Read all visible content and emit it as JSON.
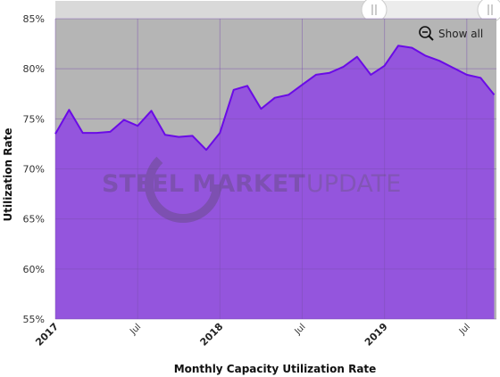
{
  "chart_data": {
    "type": "area",
    "xlabel": "Monthly Capacity Utilization Rate",
    "ylabel": "Utilization Rate",
    "ylim": [
      55,
      85
    ],
    "y_ticks": [
      "55%",
      "60%",
      "65%",
      "70%",
      "75%",
      "80%",
      "85%"
    ],
    "y_tick_values": [
      55,
      60,
      65,
      70,
      75,
      80,
      85
    ],
    "x_ticks": [
      {
        "label": "2017",
        "month": 0,
        "major": true
      },
      {
        "label": "Jul",
        "month": 6,
        "major": false
      },
      {
        "label": "2018",
        "month": 12,
        "major": true
      },
      {
        "label": "Jul",
        "month": 18,
        "major": false
      },
      {
        "label": "2019",
        "month": 24,
        "major": true
      },
      {
        "label": "Jul",
        "month": 30,
        "major": false
      }
    ],
    "x_range_months": [
      0,
      32
    ],
    "series": [
      {
        "x": [
          "2017-01",
          "2017-02",
          "2017-03",
          "2017-04",
          "2017-05",
          "2017-06",
          "2017-07",
          "2017-08",
          "2017-09",
          "2017-10",
          "2017-11",
          "2017-12",
          "2018-01",
          "2018-02",
          "2018-03",
          "2018-04",
          "2018-05",
          "2018-06",
          "2018-07",
          "2018-08",
          "2018-09",
          "2018-10",
          "2018-11",
          "2018-12",
          "2019-01",
          "2019-02",
          "2019-03",
          "2019-04",
          "2019-05",
          "2019-06",
          "2019-07",
          "2019-08",
          "2019-09"
        ],
        "values": [
          73.5,
          75.9,
          73.6,
          73.6,
          73.7,
          74.9,
          74.3,
          75.8,
          73.4,
          73.2,
          73.3,
          71.9,
          73.6,
          77.9,
          78.3,
          76.0,
          77.1,
          77.4,
          78.4,
          79.4,
          79.6,
          80.2,
          81.2,
          79.4,
          80.3,
          82.3,
          82.1,
          81.3,
          80.8,
          80.1,
          79.4,
          79.1,
          77.4
        ]
      }
    ],
    "colors": {
      "area_fill": "#9455dd",
      "line": "#6a0be6",
      "plot_bg": "#b5b5b5",
      "grid": "#888888",
      "navigator_bg": "#d9d9d9"
    },
    "grid": true,
    "legend": "none"
  },
  "watermark": {
    "text_bold": "STEEL MARKET",
    "text_light": "UPDATE"
  },
  "controls": {
    "show_all_label": "Show all",
    "show_all_icon": "zoom-out-icon",
    "handle_icon": "drag-handle-icon"
  }
}
